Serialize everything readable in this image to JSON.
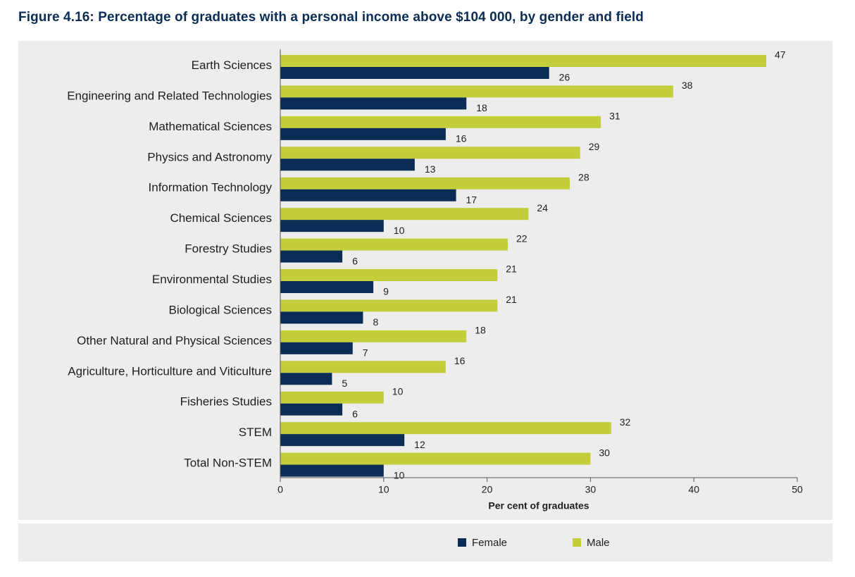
{
  "title": "Figure 4.16: Percentage of graduates with a personal income above $104 000, by gender and field",
  "colors": {
    "female": "#0b2d55",
    "male": "#c4cd3a",
    "axis": "#555555"
  },
  "chart_data": {
    "type": "bar",
    "orientation": "horizontal",
    "title": "Figure 4.16: Percentage of graduates with a personal income above $104 000, by gender and field",
    "xlabel": "Per cent of graduates",
    "ylabel": "",
    "xlim": [
      0,
      50
    ],
    "xticks": [
      0,
      10,
      20,
      30,
      40,
      50
    ],
    "categories": [
      "Earth Sciences",
      "Engineering and Related Technologies",
      "Mathematical Sciences",
      "Physics and Astronomy",
      "Information Technology",
      "Chemical Sciences",
      "Forestry Studies",
      "Environmental Studies",
      "Biological Sciences",
      "Other Natural and Physical Sciences",
      "Agriculture, Horticulture and Viticulture",
      "Fisheries Studies",
      "STEM",
      "Total Non-STEM"
    ],
    "series": [
      {
        "name": "Male",
        "values": [
          47,
          38,
          31,
          29,
          28,
          24,
          22,
          21,
          21,
          18,
          16,
          10,
          32,
          30
        ]
      },
      {
        "name": "Female",
        "values": [
          26,
          18,
          16,
          13,
          17,
          10,
          6,
          9,
          8,
          7,
          5,
          6,
          12,
          10
        ]
      }
    ],
    "legend": {
      "position": "bottom",
      "items": [
        "Female",
        "Male"
      ]
    },
    "grid": false
  }
}
